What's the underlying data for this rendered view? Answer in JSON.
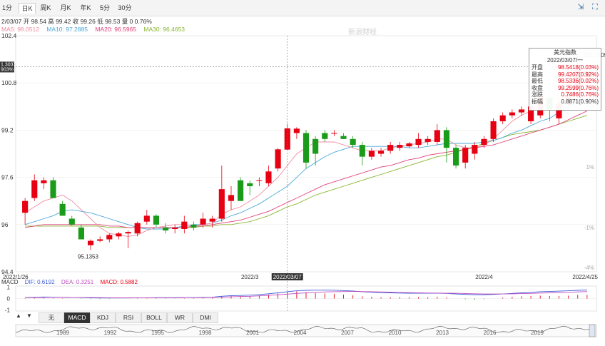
{
  "toolbar": {
    "tabs": [
      "1分",
      "日K",
      "周K",
      "月K",
      "年K",
      "5分",
      "30分"
    ],
    "active_tab": "日K",
    "icons": [
      "expand-icon",
      "settings-icon"
    ]
  },
  "info": {
    "text": "2/03/07 开 98.54 高 99.42 收 99.26 低 98.53 量 0 0.76%"
  },
  "ma": {
    "ma5": "MA5: 98.0512",
    "ma10": "MA10: 97.2885",
    "ma20": "MA20: 96.5965",
    "ma30": "MA30: 96.4653"
  },
  "colors": {
    "up": "#e60012",
    "down": "#1a9b1a",
    "ma5": "#f08ca0",
    "ma10": "#4aa8d8",
    "ma20": "#e0407a",
    "ma30": "#8ab530",
    "dif": "#3d5bd9",
    "dea": "#c050c0"
  },
  "price_axis": {
    "labels": [
      "102.4",
      "100.8",
      "99.2",
      "97.6",
      "96",
      "94.4"
    ],
    "pct_labels": [
      "6%",
      "4%",
      "1%",
      "-1%",
      "-4%"
    ],
    "current_tag_a": "1.3037",
    "current_tag_b": "903%",
    "low_marker": "95.1353",
    "high_marker_partial": "101.7509"
  },
  "date_axis": {
    "labels": [
      "2022/1/26",
      "2022/3",
      "2022/03/07",
      "2022/4",
      "2022/4/25"
    ]
  },
  "tooltip": {
    "title": "美元指数",
    "date": "2022/03/07/一",
    "rows": [
      {
        "label": "开盘",
        "value": "98.5418(0.03%)"
      },
      {
        "label": "最高",
        "value": "99.4207(0.92%)"
      },
      {
        "label": "最低",
        "value": "98.5336(0.02%)"
      },
      {
        "label": "收盘",
        "value": "99.2599(0.76%)"
      },
      {
        "label": "涨跌",
        "value": "0.7486(0.76%)"
      },
      {
        "label": "振幅",
        "value": "0.8871(0.90%)"
      }
    ]
  },
  "macd": {
    "title": "MACD",
    "dif": "DIF: 0.6192",
    "dea": "DEA: 0.3251",
    "macd": "MACD: 0.5882",
    "axis": [
      "1",
      "0",
      "-1"
    ]
  },
  "indicator_tabs": [
    "无",
    "MACD",
    "KDJ",
    "RSI",
    "BOLL",
    "WR",
    "DMI"
  ],
  "active_indicator": "MACD",
  "nav": {
    "up_arrow": "▲",
    "down_arrow": "▼",
    "years": [
      "1989",
      "1992",
      "1995",
      "1998",
      "2001",
      "2004",
      "2007",
      "2010",
      "2013",
      "2016",
      "2019"
    ]
  },
  "watermark": "新浪财经",
  "chart_data": {
    "type": "candlestick",
    "title": "美元指数",
    "ylim": [
      94.4,
      102.4
    ],
    "candles": [
      {
        "o": 96.4,
        "h": 96.9,
        "l": 96.0,
        "c": 96.8
      },
      {
        "o": 96.9,
        "h": 97.7,
        "l": 96.8,
        "c": 97.5
      },
      {
        "o": 97.4,
        "h": 97.6,
        "l": 97.2,
        "c": 97.5
      },
      {
        "o": 97.5,
        "h": 97.6,
        "l": 96.9,
        "c": 96.9
      },
      {
        "o": 96.7,
        "h": 96.8,
        "l": 96.3,
        "c": 96.3
      },
      {
        "o": 96.2,
        "h": 96.3,
        "l": 95.95,
        "c": 96.0
      },
      {
        "o": 95.9,
        "h": 96.0,
        "l": 95.5,
        "c": 95.5
      },
      {
        "o": 95.3,
        "h": 95.5,
        "l": 95.14,
        "c": 95.45
      },
      {
        "o": 95.45,
        "h": 95.6,
        "l": 95.4,
        "c": 95.5
      },
      {
        "o": 95.5,
        "h": 95.7,
        "l": 95.4,
        "c": 95.65
      },
      {
        "o": 95.6,
        "h": 95.75,
        "l": 95.5,
        "c": 95.7
      },
      {
        "o": 95.7,
        "h": 95.8,
        "l": 95.2,
        "c": 95.75
      },
      {
        "o": 95.7,
        "h": 96.1,
        "l": 95.6,
        "c": 96.05
      },
      {
        "o": 96.1,
        "h": 96.5,
        "l": 96.0,
        "c": 96.3
      },
      {
        "o": 96.3,
        "h": 96.35,
        "l": 95.9,
        "c": 96.0
      },
      {
        "o": 95.9,
        "h": 96.05,
        "l": 95.7,
        "c": 95.8
      },
      {
        "o": 95.85,
        "h": 96.0,
        "l": 95.7,
        "c": 95.9
      },
      {
        "o": 95.85,
        "h": 96.3,
        "l": 95.7,
        "c": 96.1
      },
      {
        "o": 96.0,
        "h": 96.1,
        "l": 95.8,
        "c": 95.9
      },
      {
        "o": 96.0,
        "h": 96.4,
        "l": 95.9,
        "c": 96.2
      },
      {
        "o": 96.1,
        "h": 96.3,
        "l": 95.9,
        "c": 96.2
      },
      {
        "o": 96.2,
        "h": 98.0,
        "l": 96.1,
        "c": 97.2
      },
      {
        "o": 96.8,
        "h": 97.3,
        "l": 96.5,
        "c": 97.0
      },
      {
        "o": 97.5,
        "h": 97.6,
        "l": 96.8,
        "c": 96.8
      },
      {
        "o": 97.4,
        "h": 97.5,
        "l": 97.0,
        "c": 97.3
      },
      {
        "o": 97.5,
        "h": 97.6,
        "l": 97.3,
        "c": 97.5
      },
      {
        "o": 97.4,
        "h": 98.0,
        "l": 97.3,
        "c": 97.8
      },
      {
        "o": 97.9,
        "h": 98.6,
        "l": 97.8,
        "c": 98.55
      },
      {
        "o": 98.54,
        "h": 99.42,
        "l": 98.53,
        "c": 99.26
      },
      {
        "o": 99.1,
        "h": 99.3,
        "l": 98.9,
        "c": 99.25
      },
      {
        "o": 99.1,
        "h": 99.2,
        "l": 97.9,
        "c": 98.1
      },
      {
        "o": 98.9,
        "h": 99.0,
        "l": 98.0,
        "c": 98.4
      },
      {
        "o": 99.1,
        "h": 99.2,
        "l": 98.8,
        "c": 98.9
      },
      {
        "o": 99.1,
        "h": 99.2,
        "l": 99.0,
        "c": 99.1
      },
      {
        "o": 99.0,
        "h": 99.1,
        "l": 98.9,
        "c": 98.9
      },
      {
        "o": 98.9,
        "h": 99.0,
        "l": 98.6,
        "c": 98.7
      },
      {
        "o": 98.7,
        "h": 98.8,
        "l": 98.0,
        "c": 98.3
      },
      {
        "o": 98.3,
        "h": 98.6,
        "l": 98.2,
        "c": 98.5
      },
      {
        "o": 98.4,
        "h": 98.6,
        "l": 98.3,
        "c": 98.5
      },
      {
        "o": 98.5,
        "h": 98.8,
        "l": 98.4,
        "c": 98.7
      },
      {
        "o": 98.6,
        "h": 98.8,
        "l": 98.5,
        "c": 98.7
      },
      {
        "o": 98.65,
        "h": 98.8,
        "l": 98.6,
        "c": 98.75
      },
      {
        "o": 98.7,
        "h": 99.1,
        "l": 98.6,
        "c": 98.9
      },
      {
        "o": 98.8,
        "h": 99.0,
        "l": 98.7,
        "c": 98.9
      },
      {
        "o": 98.8,
        "h": 99.4,
        "l": 98.7,
        "c": 99.2
      },
      {
        "o": 99.2,
        "h": 99.3,
        "l": 98.1,
        "c": 98.6
      },
      {
        "o": 98.6,
        "h": 98.7,
        "l": 97.9,
        "c": 98.0
      },
      {
        "o": 98.1,
        "h": 98.7,
        "l": 97.9,
        "c": 98.6
      },
      {
        "o": 98.4,
        "h": 98.8,
        "l": 98.2,
        "c": 98.7
      },
      {
        "o": 98.7,
        "h": 99.0,
        "l": 98.6,
        "c": 98.9
      },
      {
        "o": 98.9,
        "h": 99.6,
        "l": 98.8,
        "c": 99.5
      },
      {
        "o": 99.5,
        "h": 99.8,
        "l": 99.4,
        "c": 99.7
      },
      {
        "o": 99.7,
        "h": 99.9,
        "l": 99.6,
        "c": 99.8
      },
      {
        "o": 99.8,
        "h": 100.0,
        "l": 99.7,
        "c": 99.9
      },
      {
        "o": 99.5,
        "h": 100.2,
        "l": 99.4,
        "c": 100.0
      },
      {
        "o": 99.7,
        "h": 100.4,
        "l": 99.6,
        "c": 100.3
      },
      {
        "o": 100.3,
        "h": 100.5,
        "l": 99.5,
        "c": 99.9
      },
      {
        "o": 99.6,
        "h": 100.3,
        "l": 99.4,
        "c": 100.1
      },
      {
        "o": 100.1,
        "h": 100.9,
        "l": 99.9,
        "c": 100.6
      },
      {
        "o": 100.6,
        "h": 101.75,
        "l": 100.4,
        "c": 101.3
      },
      {
        "o": 101.0,
        "h": 101.5,
        "l": 100.7,
        "c": 101.2
      }
    ],
    "ma5": [
      96.4,
      96.6,
      96.8,
      96.9,
      97.0,
      96.8,
      96.5,
      96.2,
      95.9,
      95.7,
      95.65,
      95.6,
      95.65,
      95.8,
      95.9,
      95.95,
      96.0,
      96.0,
      95.95,
      96.0,
      96.05,
      96.35,
      96.5,
      96.6,
      96.8,
      97.0,
      97.3,
      97.6,
      98.0,
      98.4,
      98.6,
      98.8,
      98.8,
      98.8,
      98.7,
      98.6,
      98.5,
      98.5,
      98.5,
      98.6,
      98.65,
      98.7,
      98.75,
      98.8,
      98.9,
      98.9,
      98.7,
      98.6,
      98.6,
      98.7,
      98.9,
      99.2,
      99.5,
      99.7,
      99.85,
      100.0,
      100.0,
      100.1,
      100.3,
      100.6,
      100.9
    ],
    "ma10": [
      96.0,
      96.1,
      96.2,
      96.3,
      96.45,
      96.5,
      96.45,
      96.4,
      96.3,
      96.2,
      96.1,
      96.0,
      95.9,
      95.85,
      95.85,
      95.85,
      95.9,
      95.95,
      96.0,
      96.0,
      96.05,
      96.15,
      96.3,
      96.4,
      96.55,
      96.7,
      96.9,
      97.1,
      97.3,
      97.6,
      97.9,
      98.1,
      98.3,
      98.45,
      98.55,
      98.65,
      98.65,
      98.65,
      98.65,
      98.65,
      98.65,
      98.6,
      98.6,
      98.65,
      98.7,
      98.75,
      98.75,
      98.75,
      98.75,
      98.8,
      98.85,
      98.95,
      99.1,
      99.2,
      99.35,
      99.5,
      99.6,
      99.8,
      100.0,
      100.2,
      100.4
    ],
    "ma20": [
      95.9,
      95.95,
      96.0,
      96.0,
      96.0,
      96.0,
      96.0,
      96.0,
      96.0,
      95.95,
      95.95,
      95.9,
      95.9,
      95.9,
      95.9,
      95.9,
      95.9,
      95.9,
      95.95,
      95.95,
      96.0,
      96.05,
      96.1,
      96.15,
      96.25,
      96.35,
      96.45,
      96.6,
      96.75,
      96.9,
      97.05,
      97.2,
      97.35,
      97.45,
      97.55,
      97.65,
      97.75,
      97.85,
      97.95,
      98.0,
      98.1,
      98.2,
      98.25,
      98.35,
      98.4,
      98.45,
      98.5,
      98.55,
      98.6,
      98.65,
      98.7,
      98.8,
      98.9,
      99.0,
      99.1,
      99.2,
      99.3,
      99.4,
      99.55,
      99.7,
      99.85
    ],
    "ma30": [
      95.95,
      95.95,
      95.95,
      95.95,
      95.95,
      95.95,
      95.95,
      95.95,
      95.95,
      95.9,
      95.9,
      95.9,
      95.9,
      95.9,
      95.9,
      95.9,
      95.9,
      95.9,
      95.9,
      95.95,
      95.95,
      96.0,
      96.0,
      96.05,
      96.1,
      96.2,
      96.3,
      96.45,
      96.6,
      96.7,
      96.85,
      97.0,
      97.1,
      97.2,
      97.3,
      97.4,
      97.5,
      97.6,
      97.7,
      97.8,
      97.9,
      98.0,
      98.1,
      98.2,
      98.3,
      98.35,
      98.45,
      98.55,
      98.65,
      98.75,
      98.85,
      98.95,
      99.05,
      99.1,
      99.15,
      99.2,
      99.3,
      99.4,
      99.5,
      99.6,
      99.7
    ],
    "macd_hist": [
      0.02,
      0.03,
      0.04,
      0.03,
      0.02,
      0.0,
      -0.02,
      -0.03,
      -0.03,
      -0.02,
      -0.01,
      0.0,
      0.02,
      0.03,
      0.03,
      0.02,
      0.01,
      0.02,
      0.02,
      0.03,
      0.04,
      0.12,
      0.14,
      0.12,
      0.14,
      0.18,
      0.22,
      0.28,
      0.36,
      0.4,
      0.34,
      0.3,
      0.28,
      0.26,
      0.22,
      0.18,
      0.12,
      0.1,
      0.08,
      0.08,
      0.08,
      0.08,
      0.08,
      0.08,
      0.1,
      0.06,
      0.0,
      -0.04,
      -0.06,
      -0.04,
      0.0,
      0.06,
      0.1,
      0.12,
      0.14,
      0.16,
      0.14,
      0.14,
      0.16,
      0.2,
      0.2
    ],
    "dif": [
      0.1,
      0.12,
      0.14,
      0.13,
      0.12,
      0.1,
      0.08,
      0.06,
      0.05,
      0.05,
      0.05,
      0.05,
      0.06,
      0.07,
      0.08,
      0.08,
      0.08,
      0.09,
      0.1,
      0.11,
      0.12,
      0.2,
      0.25,
      0.27,
      0.3,
      0.35,
      0.42,
      0.5,
      0.6,
      0.68,
      0.72,
      0.74,
      0.74,
      0.73,
      0.7,
      0.66,
      0.6,
      0.55,
      0.52,
      0.5,
      0.48,
      0.47,
      0.46,
      0.46,
      0.47,
      0.45,
      0.4,
      0.36,
      0.34,
      0.34,
      0.36,
      0.4,
      0.45,
      0.5,
      0.55,
      0.6,
      0.62,
      0.65,
      0.68,
      0.72,
      0.76
    ],
    "dea": [
      0.08,
      0.09,
      0.1,
      0.11,
      0.11,
      0.1,
      0.1,
      0.09,
      0.08,
      0.07,
      0.06,
      0.06,
      0.06,
      0.06,
      0.07,
      0.07,
      0.07,
      0.08,
      0.08,
      0.09,
      0.1,
      0.12,
      0.15,
      0.18,
      0.2,
      0.24,
      0.28,
      0.33,
      0.39,
      0.45,
      0.5,
      0.55,
      0.58,
      0.6,
      0.61,
      0.62,
      0.61,
      0.6,
      0.58,
      0.56,
      0.54,
      0.52,
      0.5,
      0.49,
      0.48,
      0.47,
      0.46,
      0.44,
      0.42,
      0.4,
      0.4,
      0.4,
      0.41,
      0.43,
      0.45,
      0.48,
      0.5,
      0.53,
      0.55,
      0.58,
      0.61
    ]
  }
}
